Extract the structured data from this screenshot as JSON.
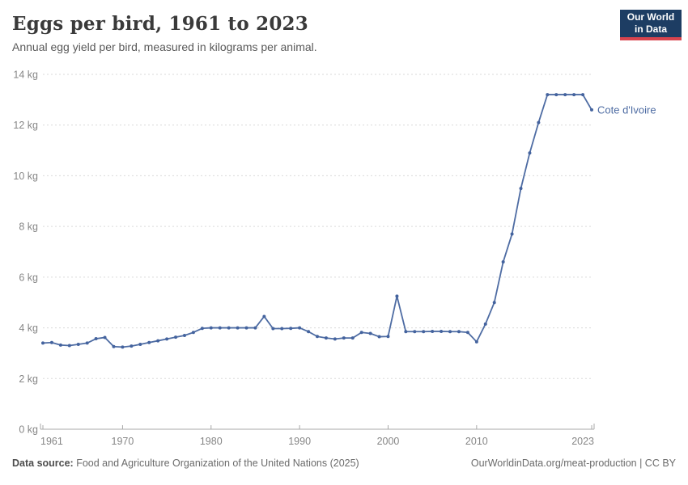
{
  "header": {
    "title": "Eggs per bird, 1961 to 2023",
    "subtitle": "Annual egg yield per bird, measured in kilograms per animal.",
    "logo_line1": "Our World",
    "logo_line2": "in Data"
  },
  "footer": {
    "source_label": "Data source:",
    "source_text": " Food and Agriculture Organization of the United Nations (2025)",
    "credit": "OurWorldinData.org/meat-production | CC BY"
  },
  "colors": {
    "line": "#4e6ca3",
    "point": "#44639e",
    "grid": "#dadada",
    "axis": "#a8a8a8",
    "tick_label": "#868686",
    "entity_label": "#4e6ca3",
    "title": "#3a3a3a",
    "subtitle": "#595959",
    "logo_bg": "#1d3d63",
    "logo_red": "#d8444e"
  },
  "chart_data": {
    "type": "line",
    "title": "Eggs per bird, 1961 to 2023",
    "subtitle": "Annual egg yield per bird, measured in kilograms per animal.",
    "xlabel": "",
    "ylabel": "kg",
    "xlim": [
      1961,
      2023
    ],
    "ylim": [
      0,
      14
    ],
    "grid": "horizontal-dashed",
    "legend": "end-of-line-label",
    "unit": "kg",
    "y_ticks": [
      {
        "value": 0,
        "label": "0 kg"
      },
      {
        "value": 2,
        "label": "2 kg"
      },
      {
        "value": 4,
        "label": "4 kg"
      },
      {
        "value": 6,
        "label": "6 kg"
      },
      {
        "value": 8,
        "label": "8 kg"
      },
      {
        "value": 10,
        "label": "10 kg"
      },
      {
        "value": 12,
        "label": "12 kg"
      },
      {
        "value": 14,
        "label": "14 kg"
      }
    ],
    "x_ticks": [
      {
        "year": 1961,
        "label": "1961",
        "anchor": "start"
      },
      {
        "year": 1970,
        "label": "1970",
        "anchor": "middle"
      },
      {
        "year": 1980,
        "label": "1980",
        "anchor": "middle"
      },
      {
        "year": 1990,
        "label": "1990",
        "anchor": "middle"
      },
      {
        "year": 2000,
        "label": "2000",
        "anchor": "middle"
      },
      {
        "year": 2010,
        "label": "2010",
        "anchor": "middle"
      },
      {
        "year": 2023,
        "label": "2023",
        "anchor": "end"
      }
    ],
    "series": [
      {
        "name": "Cote d'Ivoire",
        "color": "#4e6ca3",
        "years": [
          1961,
          1962,
          1963,
          1964,
          1965,
          1966,
          1967,
          1968,
          1969,
          1970,
          1971,
          1972,
          1973,
          1974,
          1975,
          1976,
          1977,
          1978,
          1979,
          1980,
          1981,
          1982,
          1983,
          1984,
          1985,
          1986,
          1987,
          1988,
          1989,
          1990,
          1991,
          1992,
          1993,
          1994,
          1995,
          1996,
          1997,
          1998,
          1999,
          2000,
          2001,
          2002,
          2003,
          2004,
          2005,
          2006,
          2007,
          2008,
          2009,
          2010,
          2011,
          2012,
          2013,
          2014,
          2015,
          2016,
          2017,
          2018,
          2019,
          2020,
          2021,
          2022,
          2023
        ],
        "values": [
          3.4,
          3.42,
          3.32,
          3.3,
          3.35,
          3.4,
          3.57,
          3.62,
          3.26,
          3.24,
          3.28,
          3.35,
          3.42,
          3.49,
          3.56,
          3.63,
          3.7,
          3.82,
          3.98,
          4.0,
          4.0,
          4.0,
          4.0,
          4.0,
          4.0,
          4.45,
          3.97,
          3.97,
          3.98,
          4.0,
          3.85,
          3.66,
          3.6,
          3.56,
          3.6,
          3.6,
          3.82,
          3.78,
          3.65,
          3.66,
          5.25,
          3.85,
          3.85,
          3.85,
          3.86,
          3.86,
          3.85,
          3.85,
          3.82,
          3.45,
          4.15,
          5.0,
          6.6,
          7.7,
          9.5,
          10.9,
          12.1,
          13.2,
          13.2,
          13.2,
          13.2,
          13.2,
          12.6
        ]
      }
    ]
  }
}
